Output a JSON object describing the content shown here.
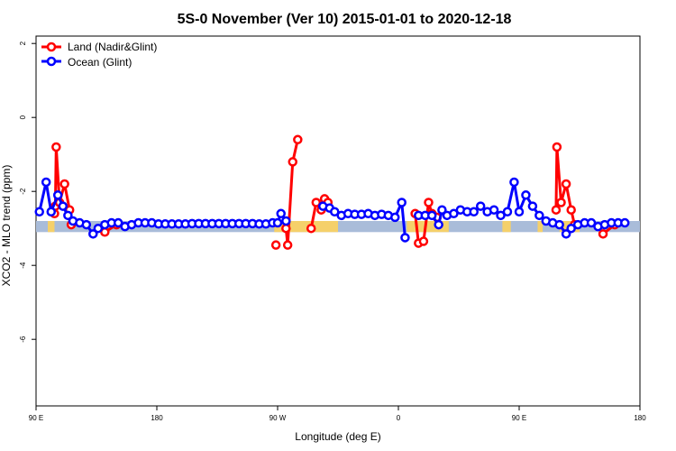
{
  "chart_data": {
    "type": "line",
    "title": "5S-0 November (Ver 10)   2015-01-01 to 2020-12-18",
    "xlabel": "Longitude (deg E)",
    "ylabel": "XCO2 - MLO trend (ppm)",
    "xlim": [
      90,
      450
    ],
    "ylim": [
      -7.8,
      2.2
    ],
    "x_ticks": [
      {
        "value": 90,
        "label": "90 E"
      },
      {
        "value": 162,
        "label": "180"
      },
      {
        "value": 234,
        "label": "90 W"
      },
      {
        "value": 306,
        "label": "0"
      },
      {
        "value": 378,
        "label": "90 E"
      },
      {
        "value": 450,
        "label": "180"
      }
    ],
    "y_ticks": [
      {
        "value": 2,
        "label": "2"
      },
      {
        "value": 0,
        "label": "0"
      },
      {
        "value": -2,
        "label": "-2"
      },
      {
        "value": -4,
        "label": "-4"
      },
      {
        "value": -6,
        "label": "-6"
      }
    ],
    "band": {
      "ymin": -3.1,
      "ymax": -2.8,
      "color": "#a9bcd9"
    },
    "land_mask": [
      {
        "start": 97,
        "end": 101
      },
      {
        "start": 232,
        "end": 270
      },
      {
        "start": 311,
        "end": 336
      },
      {
        "start": 368,
        "end": 373
      },
      {
        "start": 389,
        "end": 392
      },
      {
        "start": 402,
        "end": 414
      }
    ],
    "land_color": "#f5d06a",
    "legend": {
      "position": "top-left"
    },
    "series": [
      {
        "name": "Land (Nadir&Glint)",
        "color": "#ff0000",
        "segments": [
          [
            [
              101,
              -2.6
            ],
            [
              101.5,
              -2.4
            ],
            [
              102,
              -0.8
            ],
            [
              104,
              -2.3
            ],
            [
              107,
              -1.8
            ],
            [
              110,
              -2.5
            ],
            [
              111,
              -2.9
            ]
          ],
          [
            [
              131,
              -3.1
            ],
            [
              138,
              -2.9
            ]
          ],
          [
            [
              233,
              -3.45
            ]
          ],
          [
            [
              239,
              -3.0
            ],
            [
              240,
              -3.45
            ],
            [
              243,
              -1.2
            ],
            [
              246,
              -0.6
            ]
          ],
          [
            [
              254,
              -3.0
            ],
            [
              257,
              -2.3
            ],
            [
              260,
              -2.5
            ],
            [
              262,
              -2.2
            ],
            [
              264,
              -2.3
            ]
          ],
          [
            [
              316,
              -2.6
            ],
            [
              318,
              -3.4
            ],
            [
              321,
              -3.35
            ],
            [
              324,
              -2.3
            ],
            [
              326,
              -2.6
            ],
            [
              329,
              -2.7
            ]
          ],
          [
            [
              400,
              -2.5
            ],
            [
              400.5,
              -0.8
            ],
            [
              403,
              -2.3
            ],
            [
              406,
              -1.8
            ],
            [
              409,
              -2.5
            ],
            [
              411,
              -2.9
            ]
          ],
          [
            [
              428,
              -3.15
            ],
            [
              435,
              -2.9
            ]
          ]
        ]
      },
      {
        "name": "Ocean (Glint)",
        "color": "#0000ff",
        "segments": [
          [
            [
              92,
              -2.55
            ],
            [
              96,
              -1.75
            ],
            [
              99,
              -2.55
            ],
            [
              103,
              -2.1
            ],
            [
              106,
              -2.4
            ],
            [
              109,
              -2.65
            ],
            [
              112,
              -2.8
            ],
            [
              116,
              -2.85
            ],
            [
              120,
              -2.9
            ],
            [
              124,
              -3.15
            ],
            [
              127,
              -3.0
            ],
            [
              131,
              -2.9
            ],
            [
              135,
              -2.85
            ],
            [
              139,
              -2.85
            ],
            [
              143,
              -2.95
            ],
            [
              147,
              -2.9
            ],
            [
              151,
              -2.85
            ],
            [
              155,
              -2.85
            ],
            [
              159,
              -2.85
            ],
            [
              163,
              -2.88
            ],
            [
              167,
              -2.88
            ],
            [
              171,
              -2.88
            ],
            [
              175,
              -2.88
            ],
            [
              179,
              -2.88
            ],
            [
              183,
              -2.87
            ],
            [
              187,
              -2.87
            ],
            [
              191,
              -2.87
            ],
            [
              195,
              -2.87
            ],
            [
              199,
              -2.87
            ],
            [
              203,
              -2.87
            ],
            [
              207,
              -2.87
            ],
            [
              211,
              -2.87
            ],
            [
              215,
              -2.87
            ],
            [
              219,
              -2.87
            ],
            [
              223,
              -2.88
            ],
            [
              227,
              -2.88
            ],
            [
              231,
              -2.85
            ],
            [
              234,
              -2.85
            ],
            [
              236,
              -2.6
            ],
            [
              239,
              -2.8
            ]
          ],
          [
            [
              261,
              -2.4
            ],
            [
              265,
              -2.45
            ],
            [
              268,
              -2.55
            ],
            [
              272,
              -2.65
            ],
            [
              276,
              -2.6
            ],
            [
              280,
              -2.62
            ],
            [
              284,
              -2.62
            ],
            [
              288,
              -2.6
            ],
            [
              292,
              -2.65
            ],
            [
              296,
              -2.62
            ],
            [
              300,
              -2.65
            ],
            [
              304,
              -2.7
            ],
            [
              308,
              -2.3
            ],
            [
              310,
              -3.25
            ]
          ],
          [
            [
              318,
              -2.65
            ],
            [
              322,
              -2.65
            ],
            [
              326,
              -2.65
            ],
            [
              330,
              -2.9
            ],
            [
              332,
              -2.5
            ],
            [
              335,
              -2.65
            ],
            [
              339,
              -2.6
            ],
            [
              343,
              -2.5
            ],
            [
              347,
              -2.55
            ],
            [
              351,
              -2.55
            ],
            [
              355,
              -2.4
            ],
            [
              359,
              -2.55
            ],
            [
              363,
              -2.5
            ],
            [
              367,
              -2.65
            ],
            [
              371,
              -2.55
            ],
            [
              375,
              -1.75
            ],
            [
              378,
              -2.55
            ],
            [
              382,
              -2.1
            ],
            [
              386,
              -2.4
            ],
            [
              390,
              -2.65
            ],
            [
              394,
              -2.8
            ],
            [
              398,
              -2.85
            ],
            [
              402,
              -2.9
            ],
            [
              406,
              -3.15
            ],
            [
              409,
              -3.0
            ],
            [
              413,
              -2.9
            ],
            [
              417,
              -2.85
            ],
            [
              421,
              -2.85
            ],
            [
              425,
              -2.95
            ],
            [
              429,
              -2.9
            ],
            [
              433,
              -2.85
            ],
            [
              437,
              -2.85
            ],
            [
              441,
              -2.85
            ]
          ]
        ]
      }
    ]
  }
}
